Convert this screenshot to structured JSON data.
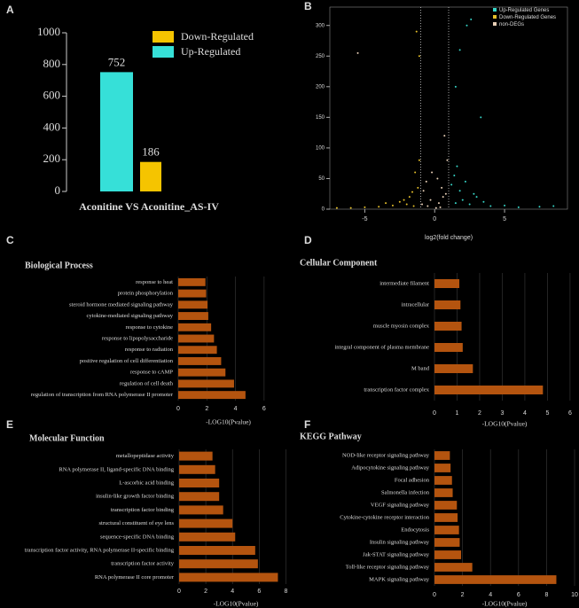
{
  "chart_data": [
    {
      "panel_label": "A",
      "type": "bar",
      "categories": [
        "Aconitine VS Aconitine_AS-IV"
      ],
      "series": [
        {
          "name": "Up-Regulated",
          "color": "#36e0d8",
          "values": [
            752
          ]
        },
        {
          "name": "Down-Regulated",
          "color": "#f5c400",
          "values": [
            186
          ]
        }
      ],
      "ylim": [
        0,
        1000
      ],
      "yticks": [
        0,
        200,
        400,
        600,
        800,
        1000
      ],
      "show_values": true
    },
    {
      "panel_label": "B",
      "type": "scatter",
      "xlabel": "log2(fold change)",
      "xlim": [
        -7.5,
        9.5
      ],
      "xticks": [
        -5,
        0,
        5
      ],
      "ylim": [
        0,
        330
      ],
      "yticks": [
        0,
        50,
        100,
        150,
        200,
        250,
        300
      ],
      "threshold_lines": [
        -1,
        1
      ],
      "series": [
        {
          "name": "Up-Regulated Genes",
          "color": "#36d6c8",
          "x": [
            1.5,
            2,
            2.5,
            3,
            1.2,
            1.8,
            4,
            5,
            6,
            7.5,
            1.4,
            2.8,
            3.5,
            8.5,
            2.2,
            1.6,
            2.6,
            2.3,
            1.8,
            3.3,
            1.5
          ],
          "y": [
            10,
            15,
            8,
            20,
            40,
            30,
            5,
            6,
            3,
            4,
            55,
            25,
            12,
            5,
            45,
            70,
            310,
            300,
            260,
            150,
            200
          ]
        },
        {
          "name": "Down-Regulated Genes",
          "color": "#e6c02a",
          "x": [
            -1.5,
            -2,
            -2.5,
            -3,
            -1.8,
            -1.2,
            -4,
            -5,
            -6,
            -1.4,
            -2.2,
            -3.5,
            -1.1,
            -7,
            -1.6,
            -1.3,
            -1.1
          ],
          "y": [
            5,
            8,
            12,
            6,
            20,
            35,
            4,
            3,
            2,
            60,
            15,
            10,
            80,
            2,
            28,
            290,
            250
          ]
        },
        {
          "name": "non-DEGs",
          "color": "#e8cfb6",
          "x": [
            -0.5,
            0.3,
            0.6,
            -0.8,
            0.2,
            -0.3,
            0.9,
            0.4,
            -0.6,
            0.7,
            -5.5,
            0.1,
            -0.2,
            0.5,
            -0.9,
            0.8
          ],
          "y": [
            5,
            10,
            20,
            30,
            50,
            15,
            80,
            3,
            45,
            120,
            255,
            2,
            60,
            35,
            8,
            25
          ]
        }
      ]
    },
    {
      "panel_label": "C",
      "type": "hbar",
      "title": "Biological Process",
      "xlabel": "-LOG10(Pvalue)",
      "color": "#b4540f",
      "grid": true,
      "categories": [
        "response to heat",
        "protein phosphorylation",
        "steroid hormone mediated signaling pathway",
        "cytokine-mediated signaling pathway",
        "response to cytokine",
        "response to lipopolysaccharide",
        "response to radiation",
        "positive regulation of cell differentiation",
        "response to cAMP",
        "regulation of cell death",
        "regulation of transcription from RNA polymerase II promoter"
      ],
      "values": [
        1.9,
        1.95,
        2.05,
        2.1,
        2.3,
        2.5,
        2.7,
        3.0,
        3.3,
        3.9,
        4.7
      ],
      "xlim": [
        0,
        7
      ],
      "xticks": [
        0,
        2,
        4,
        6
      ]
    },
    {
      "panel_label": "D",
      "type": "hbar",
      "title": "Cellular Component",
      "xlabel": "-LOG10(Pvalue)",
      "color": "#b4540f",
      "grid": true,
      "categories": [
        "intermediate filament",
        "intracellular",
        "muscle myosin complex",
        "integral component of plasma membrane",
        "M band",
        "transcription factor complex"
      ],
      "values": [
        1.1,
        1.15,
        1.2,
        1.25,
        1.7,
        4.8
      ],
      "xlim": [
        0,
        6.2
      ],
      "xticks": [
        0,
        1,
        2,
        3,
        4,
        5,
        6
      ]
    },
    {
      "panel_label": "E",
      "type": "hbar",
      "title": "Molecular Function",
      "xlabel": "-LOG10(Pvalue)",
      "color": "#b4540f",
      "grid": true,
      "categories": [
        "metallopeptidase activity",
        "RNA polymerase II, ligand-specific DNA binding",
        "L-ascorbic acid binding",
        "insulin-like growth factor binding",
        "transcription factor binding",
        "structural constituent of eye lens",
        "sequence-specific DNA binding",
        "transcription factor activity, RNA polymerase II-specific binding",
        "transcription factor activity",
        "RNA polymerase II core promoter"
      ],
      "values": [
        2.5,
        2.7,
        3.0,
        3.0,
        3.3,
        4.0,
        4.2,
        5.7,
        5.9,
        7.4
      ],
      "xlim": [
        0,
        8.5
      ],
      "xticks": [
        0,
        2,
        4,
        6,
        8
      ]
    },
    {
      "panel_label": "F",
      "type": "hbar",
      "title": "KEGG Pathway",
      "xlabel": "-LOG10(Pvalue)",
      "color": "#b4540f",
      "grid": true,
      "categories": [
        "NOD-like receptor signaling pathway",
        "Adipocytokine signaling pathway",
        "Focal adhesion",
        "Salmonella infection",
        "VEGF signaling pathway",
        "Cytokine-cytokine receptor interaction",
        "Endocytosis",
        "Insulin signaling pathway",
        "Jak-STAT signaling pathway",
        "Toll-like receptor signaling pathway",
        "MAPK signaling pathway"
      ],
      "values": [
        1.1,
        1.15,
        1.25,
        1.3,
        1.6,
        1.65,
        1.75,
        1.8,
        1.9,
        2.7,
        8.7
      ],
      "xlim": [
        0,
        10
      ],
      "xticks": [
        0,
        2,
        4,
        6,
        8,
        10
      ]
    }
  ]
}
